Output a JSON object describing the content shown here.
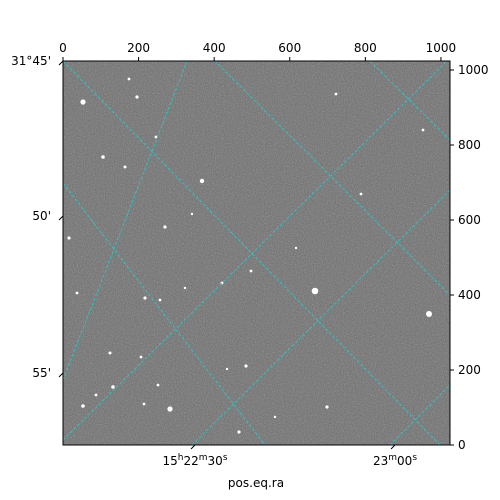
{
  "chart_data": {
    "type": "image",
    "image_description_colors": {
      "background": "#6f6f6f",
      "grid": "#2ec4c4",
      "frame": "#000000"
    },
    "pixel_axes": {
      "xlim": [
        0,
        1024
      ],
      "ylim": [
        0,
        1024
      ],
      "top_ticks": [
        0,
        200,
        400,
        600,
        800,
        1000
      ],
      "right_ticks": [
        0,
        200,
        400,
        600,
        800,
        1000
      ]
    },
    "world_axes": {
      "xlabel": "pos.eq.ra",
      "bottom_ticks": [
        {
          "label_hours": "15",
          "label_minutes": "22",
          "label_seconds": "30",
          "value": "15h22m30s"
        },
        {
          "label_hours": "",
          "label_minutes": "23",
          "label_seconds": "00",
          "value": "23m00s"
        }
      ],
      "left_ticks": [
        "31°45'",
        "50'",
        "55'"
      ]
    },
    "grid": true
  }
}
